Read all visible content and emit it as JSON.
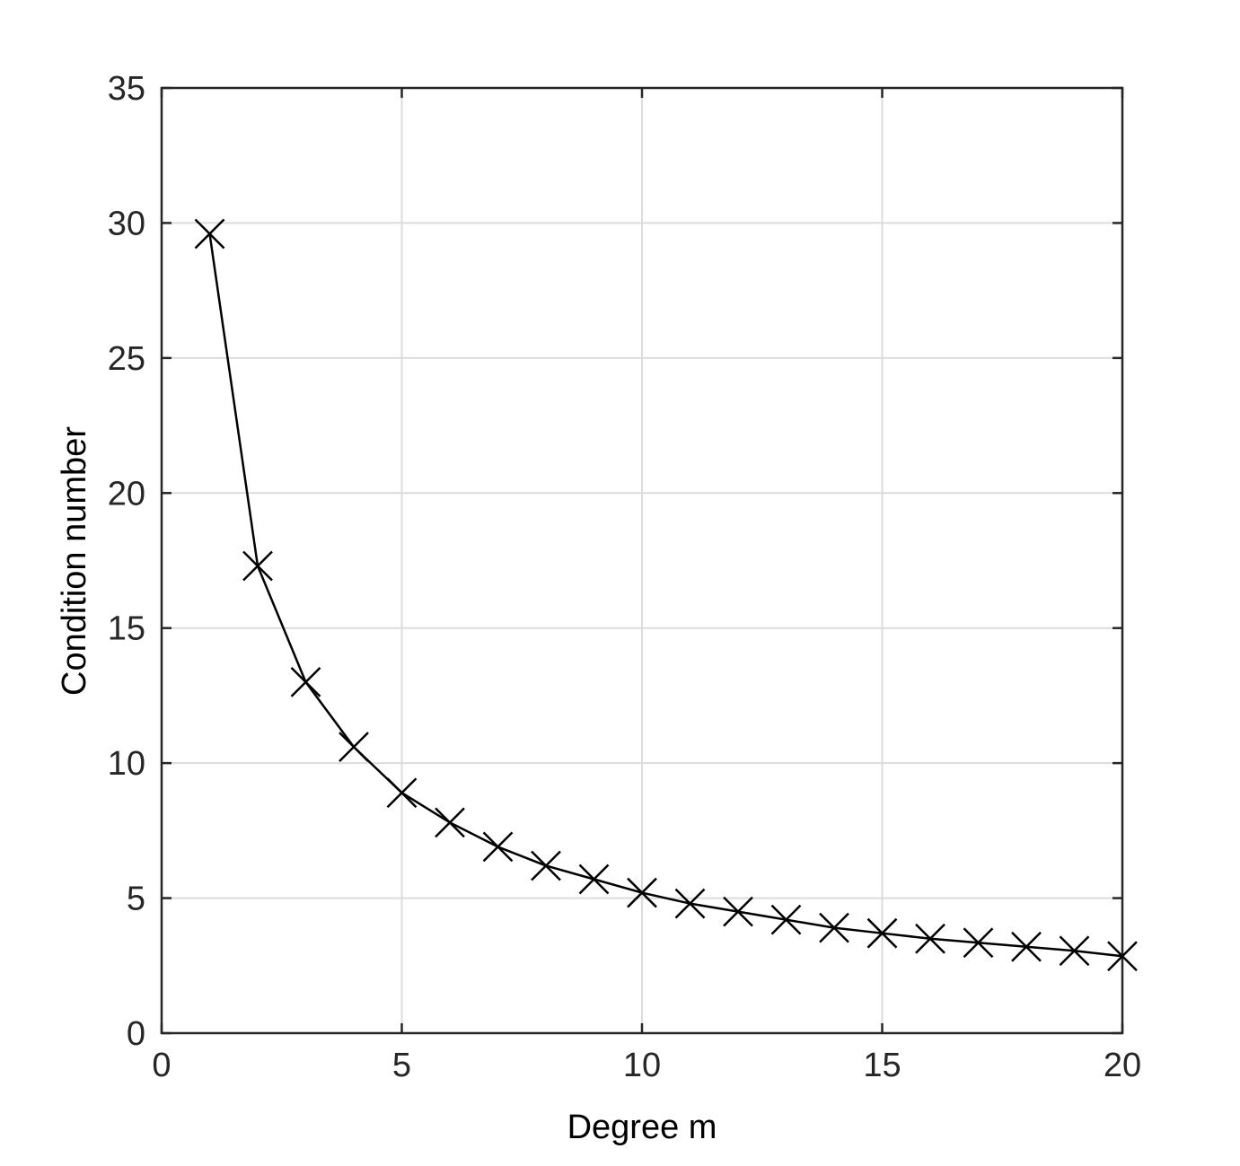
{
  "chart_data": {
    "type": "line",
    "title": "",
    "xlabel": "Degree m",
    "ylabel": "Condition number",
    "xlim": [
      0,
      20
    ],
    "ylim": [
      0,
      35
    ],
    "xticks": [
      "0",
      "5",
      "10",
      "15",
      "20"
    ],
    "yticks": [
      "0",
      "5",
      "10",
      "15",
      "20",
      "25",
      "30",
      "35"
    ],
    "grid": true,
    "marker": "x",
    "line_color": "#000000",
    "grid_color": "#dcdcdc",
    "axis_color": "#262626",
    "series": [
      {
        "x": [
          1,
          2,
          3,
          4,
          5,
          6,
          7,
          8,
          9,
          10,
          11,
          12,
          13,
          14,
          15,
          16,
          17,
          18,
          19,
          20
        ],
        "values": [
          29.6,
          17.3,
          13.0,
          10.6,
          8.9,
          7.8,
          6.9,
          6.2,
          5.7,
          5.2,
          4.8,
          4.5,
          4.2,
          3.9,
          3.7,
          3.5,
          3.35,
          3.2,
          3.05,
          2.85
        ]
      }
    ]
  }
}
